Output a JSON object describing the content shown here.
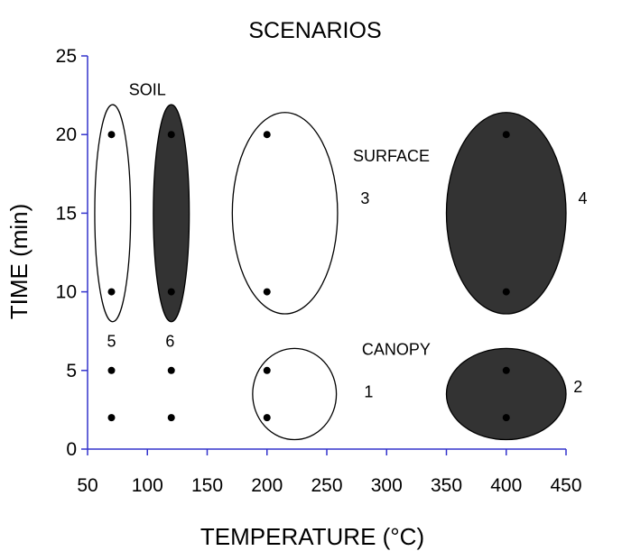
{
  "chart_data": {
    "type": "scatter",
    "title": "SCENARIOS",
    "xlabel": "TEMPERATURE  (°C)",
    "ylabel": "TIME  (min)",
    "xlim": [
      50,
      450
    ],
    "ylim": [
      0,
      25
    ],
    "xticks": [
      50,
      100,
      150,
      200,
      250,
      300,
      350,
      400,
      450
    ],
    "yticks": [
      0,
      5,
      10,
      15,
      20,
      25
    ],
    "grid": false,
    "axis_color": "#3333cc",
    "points": [
      {
        "x": 70,
        "y": 2
      },
      {
        "x": 70,
        "y": 5
      },
      {
        "x": 70,
        "y": 10
      },
      {
        "x": 70,
        "y": 20
      },
      {
        "x": 120,
        "y": 2
      },
      {
        "x": 120,
        "y": 5
      },
      {
        "x": 120,
        "y": 10
      },
      {
        "x": 120,
        "y": 20
      },
      {
        "x": 200,
        "y": 2
      },
      {
        "x": 200,
        "y": 5
      },
      {
        "x": 200,
        "y": 10
      },
      {
        "x": 200,
        "y": 20
      },
      {
        "x": 400,
        "y": 2
      },
      {
        "x": 400,
        "y": 5
      },
      {
        "x": 400,
        "y": 10
      },
      {
        "x": 400,
        "y": 20
      }
    ],
    "scenarios": [
      {
        "id": "1",
        "fill": "white",
        "cx": 223,
        "cy": 3.5,
        "rx": 35,
        "ry": 2.9
      },
      {
        "id": "2",
        "fill": "dark",
        "cx": 400,
        "cy": 3.5,
        "rx": 50,
        "ry": 2.9
      },
      {
        "id": "3",
        "fill": "white",
        "cx": 215,
        "cy": 15,
        "rx": 44,
        "ry": 6.4
      },
      {
        "id": "4",
        "fill": "dark",
        "cx": 400,
        "cy": 15,
        "rx": 50,
        "ry": 6.4
      },
      {
        "id": "5",
        "fill": "white",
        "cx": 71,
        "cy": 15,
        "rx": 15,
        "ry": 6.9
      },
      {
        "id": "6",
        "fill": "dark",
        "cx": 120,
        "cy": 15,
        "rx": 15,
        "ry": 6.9
      }
    ],
    "labels": [
      {
        "text": "1",
        "x": 285,
        "y": 3.3
      },
      {
        "text": "2",
        "x": 460,
        "y": 3.6
      },
      {
        "text": "3",
        "x": 282,
        "y": 15.6
      },
      {
        "text": "4",
        "x": 464,
        "y": 15.6
      },
      {
        "text": "5",
        "x": 70,
        "y": 6.5
      },
      {
        "text": "6",
        "x": 119,
        "y": 6.5
      },
      {
        "text": "SOIL",
        "x": 100,
        "y": 22.5
      },
      {
        "text": "SURFACE",
        "x": 304,
        "y": 18.3
      },
      {
        "text": "CANOPY",
        "x": 308,
        "y": 6.0
      }
    ],
    "colors": {
      "dark": "#333333",
      "white": "#ffffff",
      "stroke": "#000000",
      "point": "#000000"
    }
  }
}
